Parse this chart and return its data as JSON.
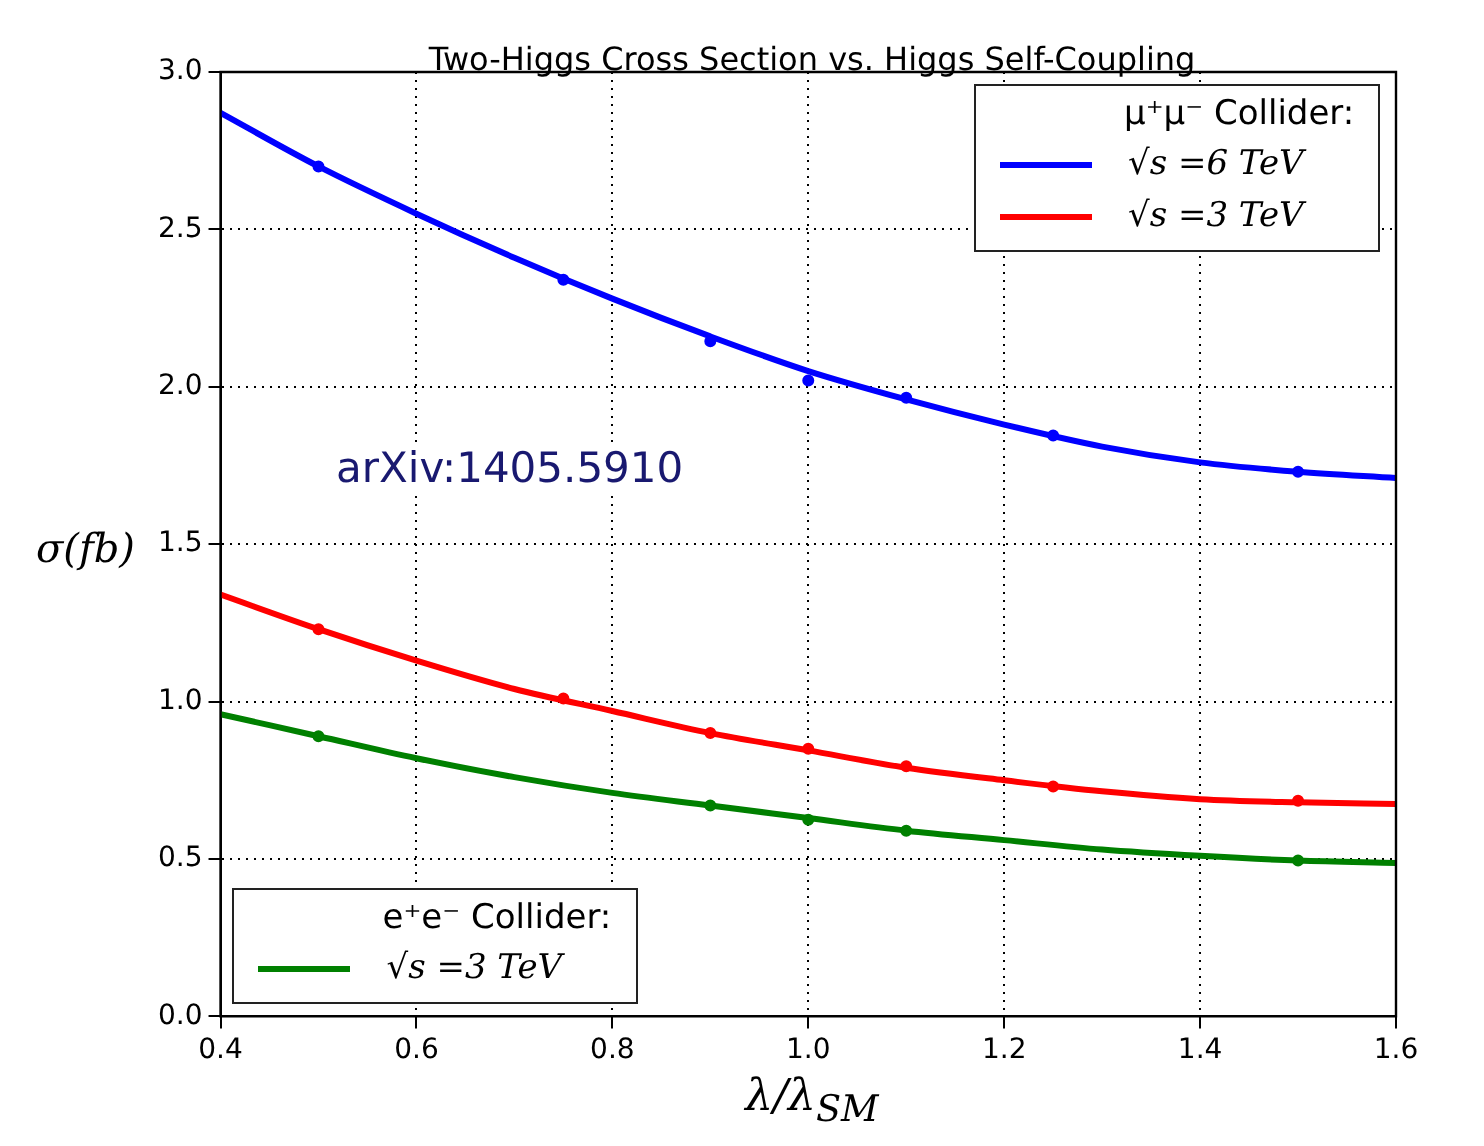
{
  "chart_data": {
    "type": "line",
    "title": "Two-Higgs Cross Section vs. Higgs Self-Coupling",
    "xlabel": "λ/λ$_{SM}$",
    "ylabel": "σ(fb)",
    "xlim": [
      0.4,
      1.6
    ],
    "xticks": [
      0.4,
      0.6,
      0.8,
      {
        "value": 1,
        "label": "1.0"
      },
      1.2,
      1.4,
      1.6
    ],
    "ylim": [
      0,
      3
    ],
    "yticks": [
      {
        "value": 0,
        "label": "0.0"
      },
      0.5,
      {
        "value": 1,
        "label": "1.0"
      },
      1.5,
      {
        "value": 2,
        "label": "2.0"
      },
      2.5,
      {
        "value": 3,
        "label": "3.0"
      }
    ],
    "grid": true,
    "legend": [
      "top right",
      "bottom left"
    ],
    "legend_title": [
      "μ⁺μ⁻  Collider:",
      "e⁺e⁻  Collider:"
    ],
    "annotations": [
      "arXiv:1405.5910"
    ],
    "series": [
      {
        "name": "√s =6 TeV",
        "color": "#0000ff",
        "marker": "none",
        "x": [
          0.4,
          0.5,
          0.6,
          0.7,
          0.8,
          0.9,
          1.0,
          1.1,
          1.2,
          1.3,
          1.4,
          1.5,
          1.6
        ],
        "values": [
          2.87,
          2.7,
          2.55,
          2.41,
          2.28,
          2.16,
          2.05,
          1.96,
          1.88,
          1.81,
          1.76,
          1.73,
          1.71
        ]
      },
      {
        "name": "√s =3 TeV",
        "color": "#ff0000",
        "marker": "none",
        "x": [
          0.4,
          0.5,
          0.6,
          0.7,
          0.8,
          0.9,
          1.0,
          1.1,
          1.2,
          1.3,
          1.4,
          1.5,
          1.6
        ],
        "values": [
          1.34,
          1.23,
          1.13,
          1.04,
          0.97,
          0.9,
          0.845,
          0.79,
          0.75,
          0.715,
          0.69,
          0.68,
          0.675
        ]
      },
      {
        "name": "√s =3 TeV",
        "color": "#008000",
        "marker": "none",
        "x": [
          0.4,
          0.5,
          0.6,
          0.7,
          0.8,
          0.9,
          1.0,
          1.1,
          1.2,
          1.3,
          1.4,
          1.5,
          1.6
        ],
        "values": [
          0.96,
          0.89,
          0.82,
          0.76,
          0.71,
          0.67,
          0.63,
          0.59,
          0.56,
          0.53,
          0.51,
          0.495,
          0.487
        ]
      },
      {
        "type": "scatter",
        "color": "#0000ff",
        "marker": "circle",
        "x": [
          0.5,
          0.75,
          0.9,
          1.0,
          1.1,
          1.25,
          1.5
        ],
        "values": [
          2.7,
          2.34,
          2.145,
          2.02,
          1.965,
          1.845,
          1.73
        ]
      },
      {
        "type": "scatter",
        "color": "#ff0000",
        "marker": "circle",
        "x": [
          0.5,
          0.75,
          0.9,
          1.0,
          1.1,
          1.25,
          1.5
        ],
        "values": [
          1.23,
          1.01,
          0.9,
          0.85,
          0.795,
          0.73,
          0.685
        ]
      },
      {
        "type": "scatter",
        "color": "#008000",
        "marker": "circle",
        "x": [
          0.5,
          0.9,
          1.0,
          1.1,
          1.5
        ],
        "values": [
          0.89,
          0.67,
          0.625,
          0.59,
          0.495
        ]
      }
    ]
  }
}
